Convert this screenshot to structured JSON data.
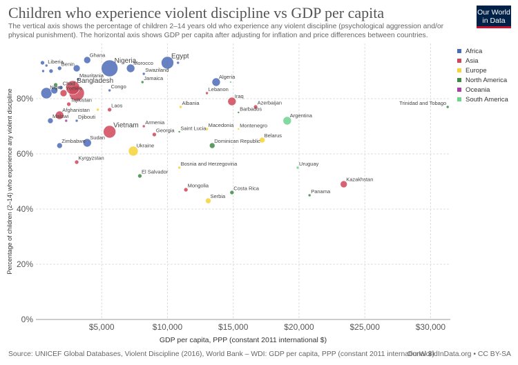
{
  "header": {
    "title": "Children who experience violent discipline vs GDP per capita",
    "subtitle": "The vertical axis shows the percentage of children 2–14 years old who experience any violent discipline (psychological aggression and/or physical punishment). The horizontal axis shows GDP per capita after adjusting for inflation and price differences between countries.",
    "logo_line1": "Our World",
    "logo_line2": "in Data"
  },
  "footer": {
    "source": "Source: UNICEF Global Databases, Violent Discipline (2016), World Bank – WDI: GDP per capita, PPP (constant 2011 international $)",
    "credit": "OurWorldInData.org • CC BY-SA"
  },
  "colors": {
    "Africa": "#4c6bb7",
    "Asia": "#cf4659",
    "Europe": "#f5d436",
    "North America": "#3f8b45",
    "Oceania": "#a83ea6",
    "South America": "#6cd48d"
  },
  "legend": [
    "Africa",
    "Asia",
    "Europe",
    "North America",
    "Oceania",
    "South America"
  ],
  "chart_data": {
    "type": "scatter",
    "xlabel": "GDP per capita, PPP (constant 2011 international $)",
    "ylabel": "Percentage of children (2–14) who experience any violent discipline",
    "xlim": [
      0,
      31500
    ],
    "ylim": [
      0,
      100
    ],
    "xticks": [
      5000,
      10000,
      15000,
      20000,
      25000,
      30000
    ],
    "xtick_labels": [
      "$5,000",
      "$10,000",
      "$15,000",
      "$20,000",
      "$25,000",
      "$30,000"
    ],
    "yticks": [
      0,
      20,
      40,
      60,
      80
    ],
    "ytick_labels": [
      "0%",
      "20%",
      "40%",
      "60%",
      "80%"
    ],
    "grid": true,
    "legend_position": "right",
    "bubble_size": "population",
    "points": [
      {
        "label": "Liberia",
        "x": 800,
        "y": 92,
        "r": 2,
        "region": "Africa",
        "show_label": true
      },
      {
        "label": "",
        "x": 500,
        "y": 93,
        "r": 3,
        "region": "Africa",
        "show_label": false
      },
      {
        "label": "",
        "x": 550,
        "y": 90,
        "r": 2,
        "region": "Africa",
        "show_label": false
      },
      {
        "label": "",
        "x": 1150,
        "y": 90,
        "r": 3,
        "region": "Africa",
        "show_label": false
      },
      {
        "label": "Benin",
        "x": 1800,
        "y": 91,
        "r": 3,
        "region": "Africa",
        "show_label": true
      },
      {
        "label": "Ghana",
        "x": 3900,
        "y": 94,
        "r": 5,
        "region": "Africa",
        "show_label": true
      },
      {
        "label": "",
        "x": 3100,
        "y": 91,
        "r": 5,
        "region": "Africa",
        "show_label": false
      },
      {
        "label": "Nigeria",
        "x": 5600,
        "y": 91,
        "r": 12,
        "region": "Africa",
        "show_label": true
      },
      {
        "label": "Morocco",
        "x": 7200,
        "y": 91,
        "r": 6,
        "region": "Africa",
        "show_label": true
      },
      {
        "label": "Egypt",
        "x": 10000,
        "y": 93,
        "r": 9,
        "region": "Africa",
        "show_label": true
      },
      {
        "label": "",
        "x": 10800,
        "y": 93,
        "r": 2,
        "region": "Africa",
        "show_label": false
      },
      {
        "label": "Swaziland",
        "x": 8200,
        "y": 89,
        "r": 2,
        "region": "Africa",
        "show_label": true
      },
      {
        "label": "Mauritania",
        "x": 3200,
        "y": 87,
        "r": 2,
        "region": "Africa",
        "show_label": true
      },
      {
        "label": "Jamaica",
        "x": 8100,
        "y": 86,
        "r": 2,
        "region": "North America",
        "show_label": true
      },
      {
        "label": "Algeria",
        "x": 13700,
        "y": 86,
        "r": 6,
        "region": "Africa",
        "show_label": true
      },
      {
        "label": "",
        "x": 14800,
        "y": 86,
        "r": 1.5,
        "region": "South America",
        "show_label": false
      },
      {
        "label": "Chad",
        "x": 1900,
        "y": 84,
        "r": 3,
        "region": "Africa",
        "show_label": true
      },
      {
        "label": "Bangladesh",
        "x": 2800,
        "y": 84,
        "r": 10,
        "region": "Asia",
        "show_label": true
      },
      {
        "label": "",
        "x": 1500,
        "y": 85,
        "r": 3,
        "region": "North America",
        "show_label": false
      },
      {
        "label": "Niger",
        "x": 800,
        "y": 82,
        "r": 8,
        "region": "Africa",
        "show_label": true
      },
      {
        "label": "Yemen",
        "x": 2100,
        "y": 82,
        "r": 5,
        "region": "Asia",
        "show_label": true
      },
      {
        "label": "",
        "x": 1400,
        "y": 83,
        "r": 5,
        "region": "Africa",
        "show_label": false
      },
      {
        "label": "",
        "x": 3100,
        "y": 82,
        "r": 11,
        "region": "Asia",
        "show_label": false
      },
      {
        "label": "Lebanon",
        "x": 13000,
        "y": 82,
        "r": 2,
        "region": "Asia",
        "show_label": true
      },
      {
        "label": "Iraq",
        "x": 14900,
        "y": 79,
        "r": 6,
        "region": "Asia",
        "show_label": true
      },
      {
        "label": "Tajikistan",
        "x": 2500,
        "y": 78,
        "r": 3,
        "region": "Asia",
        "show_label": true
      },
      {
        "label": "Albania",
        "x": 11000,
        "y": 77,
        "r": 2,
        "region": "Europe",
        "show_label": true
      },
      {
        "label": "Azerbaijan",
        "x": 16700,
        "y": 77,
        "r": 3,
        "region": "Asia",
        "show_label": true
      },
      {
        "label": "Trinidad and Tobago",
        "x": 31300,
        "y": 77,
        "r": 2,
        "region": "North America",
        "show_label": true
      },
      {
        "label": "Laos",
        "x": 5600,
        "y": 76,
        "r": 3,
        "region": "Asia",
        "show_label": true
      },
      {
        "label": "Congo",
        "x": 5600,
        "y": 83,
        "r": 2,
        "region": "Africa",
        "show_label": true
      },
      {
        "label": "",
        "x": 4700,
        "y": 76,
        "r": 2,
        "region": "Europe",
        "show_label": false
      },
      {
        "label": "Barbados",
        "x": 15400,
        "y": 75,
        "r": 1.5,
        "region": "North America",
        "show_label": true
      },
      {
        "label": "Afghanistan",
        "x": 1800,
        "y": 74,
        "r": 6,
        "region": "Asia",
        "show_label": true
      },
      {
        "label": "Argentina",
        "x": 19100,
        "y": 72,
        "r": 6,
        "region": "South America",
        "show_label": true
      },
      {
        "label": "Malawi",
        "x": 1100,
        "y": 72,
        "r": 4,
        "region": "Africa",
        "show_label": true
      },
      {
        "label": "",
        "x": 2300,
        "y": 72,
        "r": 2,
        "region": "Oceania",
        "show_label": false
      },
      {
        "label": "Djibouti",
        "x": 3100,
        "y": 72,
        "r": 2,
        "region": "Africa",
        "show_label": true
      },
      {
        "label": "Vietnam",
        "x": 5600,
        "y": 68,
        "r": 9,
        "region": "Asia",
        "show_label": true
      },
      {
        "label": "",
        "x": 7300,
        "y": 70,
        "r": 1.5,
        "region": "South America",
        "show_label": false
      },
      {
        "label": "Armenia",
        "x": 8200,
        "y": 70,
        "r": 2,
        "region": "Asia",
        "show_label": true
      },
      {
        "label": "Macedonia",
        "x": 13000,
        "y": 69,
        "r": 2,
        "region": "Europe",
        "show_label": true
      },
      {
        "label": "Montenegro",
        "x": 15400,
        "y": 69,
        "r": 1.5,
        "region": "Europe",
        "show_label": true
      },
      {
        "label": "Saint Lucia",
        "x": 10900,
        "y": 68,
        "r": 1.5,
        "region": "North America",
        "show_label": true
      },
      {
        "label": "Georgia",
        "x": 9000,
        "y": 67,
        "r": 3,
        "region": "Asia",
        "show_label": true
      },
      {
        "label": "Belarus",
        "x": 17200,
        "y": 65,
        "r": 4,
        "region": "Europe",
        "show_label": true
      },
      {
        "label": "Sudan",
        "x": 3900,
        "y": 64,
        "r": 6,
        "region": "Africa",
        "show_label": true
      },
      {
        "label": "Zimbabwe",
        "x": 1800,
        "y": 63,
        "r": 4,
        "region": "Africa",
        "show_label": true
      },
      {
        "label": "Dominican Republic",
        "x": 13400,
        "y": 63,
        "r": 4,
        "region": "North America",
        "show_label": true
      },
      {
        "label": "Ukraine",
        "x": 7400,
        "y": 61,
        "r": 7,
        "region": "Europe",
        "show_label": true
      },
      {
        "label": "Kyrgyzstan",
        "x": 3100,
        "y": 57,
        "r": 3,
        "region": "Asia",
        "show_label": true
      },
      {
        "label": "Bosnia and Herzegovina",
        "x": 10900,
        "y": 55,
        "r": 2,
        "region": "Europe",
        "show_label": true
      },
      {
        "label": "Uruguay",
        "x": 19900,
        "y": 55,
        "r": 2,
        "region": "South America",
        "show_label": true
      },
      {
        "label": "El Salvador",
        "x": 7900,
        "y": 52,
        "r": 3,
        "region": "North America",
        "show_label": true
      },
      {
        "label": "Kazakhstan",
        "x": 23400,
        "y": 49,
        "r": 5,
        "region": "Asia",
        "show_label": true
      },
      {
        "label": "Mongolia",
        "x": 11400,
        "y": 47,
        "r": 3,
        "region": "Asia",
        "show_label": true
      },
      {
        "label": "Costa Rica",
        "x": 14900,
        "y": 46,
        "r": 3,
        "region": "North America",
        "show_label": true
      },
      {
        "label": "Panama",
        "x": 20800,
        "y": 45,
        "r": 2,
        "region": "North America",
        "show_label": true
      },
      {
        "label": "Serbia",
        "x": 13100,
        "y": 43,
        "r": 4,
        "region": "Europe",
        "show_label": true
      }
    ]
  }
}
